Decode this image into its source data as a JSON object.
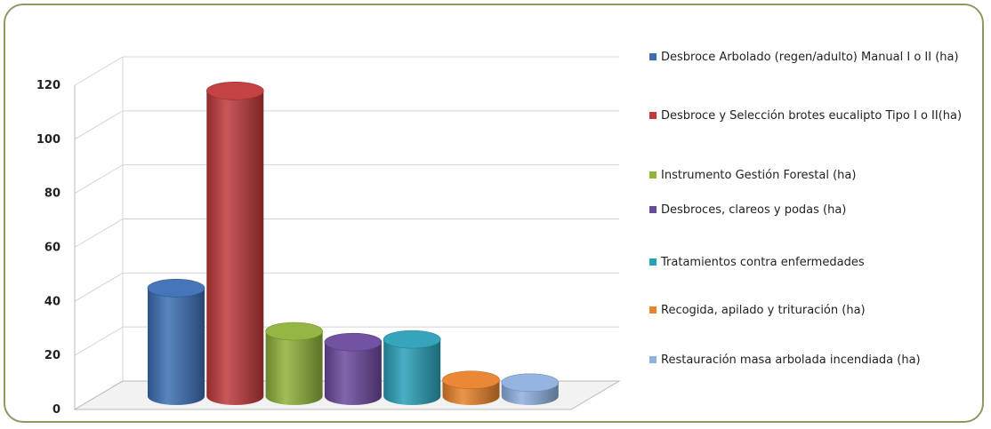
{
  "chart_data": {
    "type": "bar",
    "title": "",
    "xlabel": "",
    "ylabel": "",
    "ylim": [
      0,
      120
    ],
    "yticks": [
      "0",
      "20",
      "40",
      "60",
      "80",
      "100",
      "120"
    ],
    "grid": true,
    "legend_position": "right",
    "series": [
      {
        "name": "Desbroce Arbolado (regen/adulto) Manual I o II (ha)",
        "value": 40,
        "color": "#3c6fb5"
      },
      {
        "name": "Desbroce y Selección brotes eucalipto Tipo I o II(ha)",
        "value": 113,
        "color": "#c0393b"
      },
      {
        "name": "Instrumento Gestión Forestal (ha)",
        "value": 24,
        "color": "#8fb23a"
      },
      {
        "name": "Desbroces, clareos y podas (ha)",
        "value": 20,
        "color": "#6b4a9e"
      },
      {
        "name": "Tratamientos contra enfermedades",
        "value": 21,
        "color": "#2aa0b8"
      },
      {
        "name": "Recogida, apilado y trituración (ha)",
        "value": 6,
        "color": "#e9822a"
      },
      {
        "name": "Restauración masa arbolada incendiada (ha)",
        "value": 5,
        "color": "#8fb0e0"
      }
    ]
  }
}
